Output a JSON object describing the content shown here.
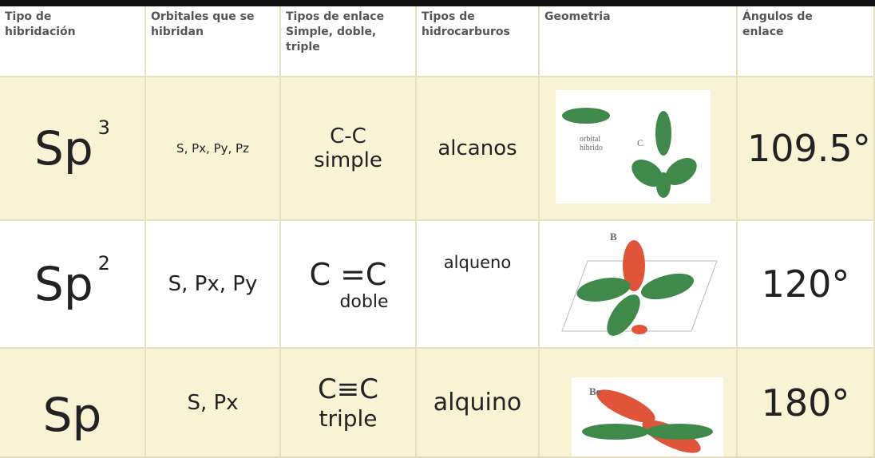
{
  "table": {
    "header": [
      "Tipo de\nhibridación",
      "Orbitales que se\nhibridan",
      "Tipos de enlace\nSimple, doble,\ntriple",
      "Tipos de\nhidrocarburos",
      "Geometria",
      "Ángulos de\nenlace"
    ],
    "rows": [
      {
        "hybrid": "Sp",
        "sup": "3",
        "orbitals": "S, Px, Py, Pz",
        "bond": "C-C",
        "bond_name": "simple",
        "hydrocarbon": "alcanos",
        "geometry_labels": [
          "orbital\nhíbrido",
          "C"
        ],
        "angle": "109.5°"
      },
      {
        "hybrid": "Sp",
        "sup": "2",
        "orbitals": "S, Px, Py",
        "bond": "C =C",
        "bond_name": "doble",
        "hydrocarbon": "alqueno",
        "geometry_labels": [
          "B"
        ],
        "angle": "120°"
      },
      {
        "hybrid": "Sp",
        "orbitals": "S, Px",
        "bond": "C≡C",
        "bond_name": "triple",
        "hydrocarbon": "alquino",
        "geometry_labels": [
          "Be"
        ],
        "angle": "180°"
      }
    ]
  }
}
